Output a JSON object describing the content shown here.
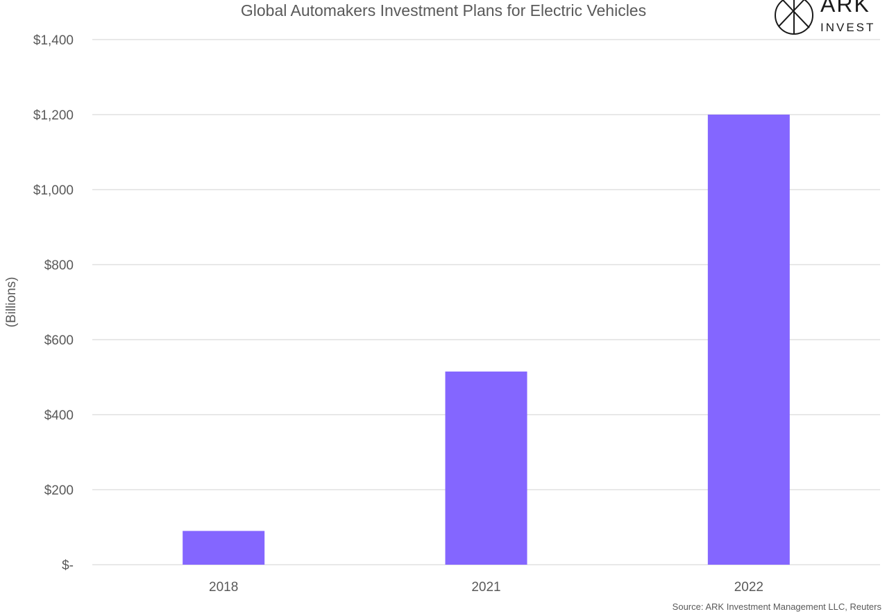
{
  "chart_data": {
    "type": "bar",
    "title": "Global Automakers Investment Plans for Electric Vehicles",
    "ylabel": "(Billions)",
    "xlabel": "",
    "categories": [
      "2018",
      "2021",
      "2022"
    ],
    "series": [
      {
        "values": [
          90,
          515,
          1200
        ],
        "color": "#8466ff"
      }
    ],
    "ylim": [
      0,
      1400
    ],
    "yticks": [
      0,
      200,
      400,
      600,
      800,
      1000,
      1200,
      1400
    ],
    "ytick_labels": [
      "$-",
      "$200",
      "$400",
      "$600",
      "$800",
      "$1,000",
      "$1,200",
      "$1,400"
    ],
    "grid": true,
    "legend": "none",
    "source": "Source: ARK Investment Management LLC, Reuters"
  },
  "logo": {
    "name": "ARK",
    "subname": "INVEST",
    "icon": "ark-compass-icon"
  },
  "colors": {
    "bar": "#8466ff",
    "grid": "#d9d9d9",
    "text": "#595959"
  }
}
